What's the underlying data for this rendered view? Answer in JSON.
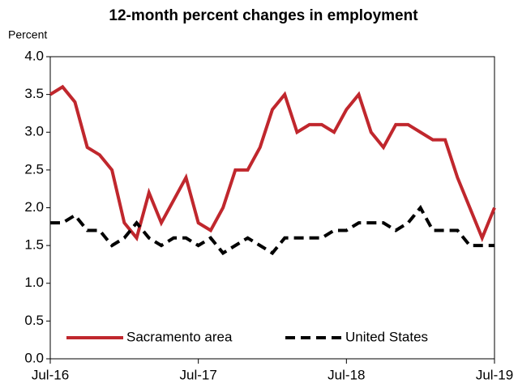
{
  "chart_data": {
    "type": "line",
    "title": "12-month percent changes in employment",
    "y_label": "Percent",
    "categories": [
      "Jul-16",
      null,
      null,
      null,
      null,
      null,
      null,
      null,
      null,
      null,
      null,
      null,
      "Jul-17",
      null,
      null,
      null,
      null,
      null,
      null,
      null,
      null,
      null,
      null,
      null,
      "Jul-18",
      null,
      null,
      null,
      null,
      null,
      null,
      null,
      null,
      null,
      null,
      null,
      "Jul-19"
    ],
    "series": [
      {
        "name": "Sacramento area",
        "color": "#c0272d",
        "dash": false,
        "values": [
          3.5,
          3.6,
          3.4,
          2.8,
          2.7,
          2.5,
          1.8,
          1.6,
          2.2,
          1.8,
          2.1,
          2.4,
          1.8,
          1.7,
          2.0,
          2.5,
          2.5,
          2.8,
          3.3,
          3.5,
          3.0,
          3.1,
          3.1,
          3.0,
          3.3,
          3.5,
          3.0,
          2.8,
          3.1,
          3.1,
          3.0,
          2.9,
          2.9,
          2.4,
          2.0,
          1.6,
          2.0
        ]
      },
      {
        "name": "United States",
        "color": "#000000",
        "dash": true,
        "values": [
          1.8,
          1.8,
          1.9,
          1.7,
          1.7,
          1.5,
          1.6,
          1.8,
          1.6,
          1.5,
          1.6,
          1.6,
          1.5,
          1.6,
          1.4,
          1.5,
          1.6,
          1.5,
          1.4,
          1.6,
          1.6,
          1.6,
          1.6,
          1.7,
          1.7,
          1.8,
          1.8,
          1.8,
          1.7,
          1.8,
          2.0,
          1.7,
          1.7,
          1.7,
          1.5,
          1.5,
          1.5
        ]
      }
    ],
    "ylim": [
      0,
      4
    ],
    "yticks": [
      {
        "value": 0,
        "label": "0.0"
      },
      {
        "value": 0.5,
        "label": "0.5"
      },
      {
        "value": 1,
        "label": "1.0"
      },
      {
        "value": 1.5,
        "label": "1.5"
      },
      {
        "value": 2,
        "label": "2.0"
      },
      {
        "value": 2.5,
        "label": "2.5"
      },
      {
        "value": 3,
        "label": "3.0"
      },
      {
        "value": 3.5,
        "label": "3.5"
      },
      {
        "value": 4,
        "label": "4.0"
      }
    ],
    "grid": false,
    "legend": "bottom"
  }
}
